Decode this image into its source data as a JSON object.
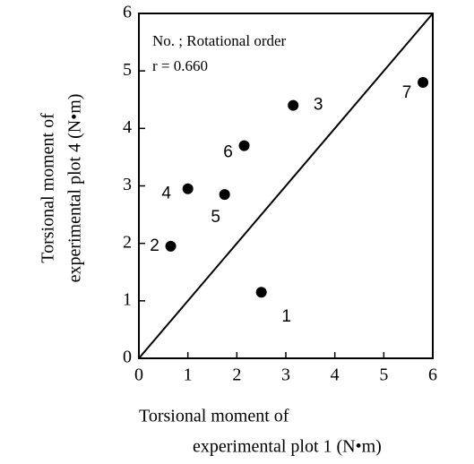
{
  "chart_data": {
    "type": "scatter",
    "x_label": [
      "Torsional moment of",
      "experimental plot 1  (N•m)"
    ],
    "y_label": [
      "Torsional moment of",
      "experimental plot 4  (N•m)"
    ],
    "annotations": [
      "No. ; Rotational order",
      "r = 0.660"
    ],
    "labels": [
      "1",
      "2",
      "3",
      "4",
      "5",
      "6",
      "7"
    ],
    "x": [
      2.5,
      0.65,
      3.15,
      1.0,
      1.75,
      2.15,
      5.8
    ],
    "y": [
      1.15,
      1.95,
      4.4,
      2.95,
      2.85,
      3.7,
      4.8
    ],
    "color": "#000000",
    "reference_line": {
      "x": [
        0,
        6
      ],
      "y": [
        0,
        6
      ]
    },
    "xlim": [
      0,
      6
    ],
    "ylim": [
      0,
      6
    ],
    "xticks": [
      0,
      1,
      2,
      3,
      4,
      5,
      6
    ],
    "yticks": [
      0,
      1,
      2,
      3,
      4,
      5,
      6
    ]
  }
}
